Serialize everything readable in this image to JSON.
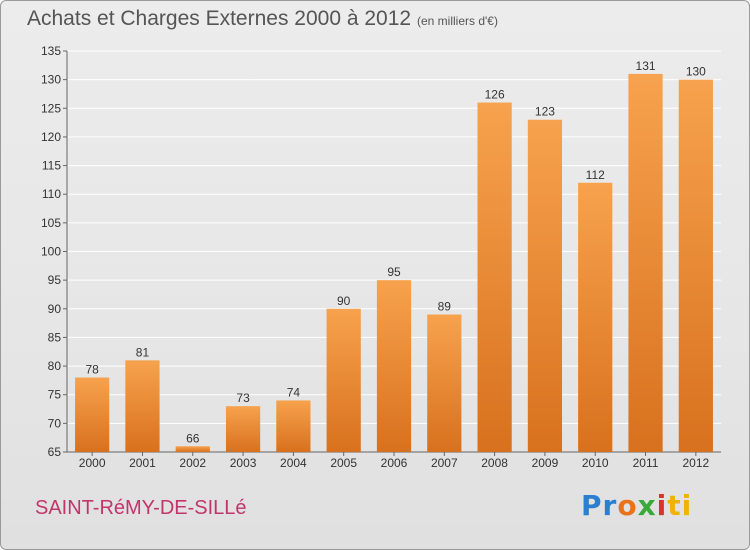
{
  "header": {
    "title": "Achats et Charges Externes 2000 à 2012",
    "unit": "(en milliers d'€)"
  },
  "footer": {
    "commune": "SAINT-RéMY-DE-SILLé",
    "logo_parts": [
      "Pr",
      "o",
      "x",
      "i",
      "ti"
    ],
    "logo_colors": [
      "#2a7fd0",
      "#e8731a",
      "#3aa83a",
      "#d8342c",
      "#f0b400"
    ]
  },
  "chart_data": {
    "type": "bar",
    "title": "Achats et Charges Externes 2000 à 2012",
    "categories": [
      "2000",
      "2001",
      "2002",
      "2003",
      "2004",
      "2005",
      "2006",
      "2007",
      "2008",
      "2009",
      "2010",
      "2011",
      "2012"
    ],
    "values": [
      78,
      81,
      66,
      73,
      74,
      90,
      95,
      89,
      126,
      123,
      112,
      131,
      130
    ],
    "xlabel": "",
    "ylabel": "",
    "ylim": [
      65,
      135
    ],
    "yticks": [
      65,
      70,
      75,
      80,
      85,
      90,
      95,
      100,
      105,
      110,
      115,
      120,
      125,
      130,
      135
    ],
    "grid": true,
    "bar_color_top": "#f7a24e",
    "bar_color_bottom": "#d8711e"
  }
}
